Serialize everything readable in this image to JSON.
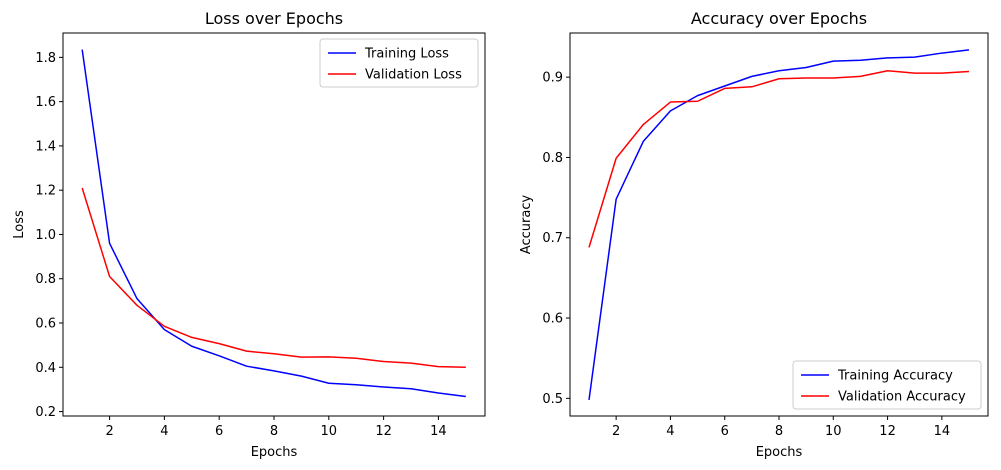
{
  "chart_data": [
    {
      "type": "line",
      "title": "Loss over Epochs",
      "xlabel": "Epochs",
      "ylabel": "Loss",
      "xlim": [
        0.3,
        15.7
      ],
      "ylim": [
        0.18,
        1.91
      ],
      "xticks": [
        2,
        4,
        6,
        8,
        10,
        12,
        14
      ],
      "yticks": [
        0.2,
        0.4,
        0.6,
        0.8,
        1.0,
        1.2,
        1.4,
        1.6,
        1.8
      ],
      "ytick_labels": [
        "0.2",
        "0.4",
        "0.6",
        "0.8",
        "1.0",
        "1.2",
        "1.4",
        "1.6",
        "1.8"
      ],
      "grid": false,
      "legend_position": "top-right",
      "x": [
        1,
        2,
        3,
        4,
        5,
        6,
        7,
        8,
        9,
        10,
        11,
        12,
        13,
        14,
        15
      ],
      "series": [
        {
          "name": "Training Loss",
          "color": "#0000ff",
          "values": [
            1.835,
            0.96,
            0.71,
            0.57,
            0.495,
            0.452,
            0.405,
            0.384,
            0.36,
            0.328,
            0.321,
            0.311,
            0.303,
            0.284,
            0.268
          ]
        },
        {
          "name": "Validation Loss",
          "color": "#ff0000",
          "values": [
            1.21,
            0.81,
            0.68,
            0.585,
            0.535,
            0.507,
            0.473,
            0.461,
            0.446,
            0.447,
            0.441,
            0.426,
            0.419,
            0.403,
            0.4
          ]
        }
      ]
    },
    {
      "type": "line",
      "title": "Accuracy over Epochs",
      "xlabel": "Epochs",
      "ylabel": "Accuracy",
      "xlim": [
        0.3,
        15.7
      ],
      "ylim": [
        0.478,
        0.955
      ],
      "xticks": [
        2,
        4,
        6,
        8,
        10,
        12,
        14
      ],
      "yticks": [
        0.5,
        0.6,
        0.7,
        0.8,
        0.9
      ],
      "ytick_labels": [
        "0.5",
        "0.6",
        "0.7",
        "0.8",
        "0.9"
      ],
      "grid": false,
      "legend_position": "bottom-right",
      "x": [
        1,
        2,
        3,
        4,
        5,
        6,
        7,
        8,
        9,
        10,
        11,
        12,
        13,
        14,
        15
      ],
      "series": [
        {
          "name": "Training Accuracy",
          "color": "#0000ff",
          "values": [
            0.498,
            0.748,
            0.82,
            0.858,
            0.877,
            0.889,
            0.901,
            0.908,
            0.912,
            0.92,
            0.921,
            0.924,
            0.925,
            0.93,
            0.934
          ]
        },
        {
          "name": "Validation Accuracy",
          "color": "#ff0000",
          "values": [
            0.688,
            0.799,
            0.841,
            0.869,
            0.87,
            0.886,
            0.888,
            0.898,
            0.899,
            0.899,
            0.901,
            0.908,
            0.905,
            0.905,
            0.907
          ]
        }
      ]
    }
  ]
}
